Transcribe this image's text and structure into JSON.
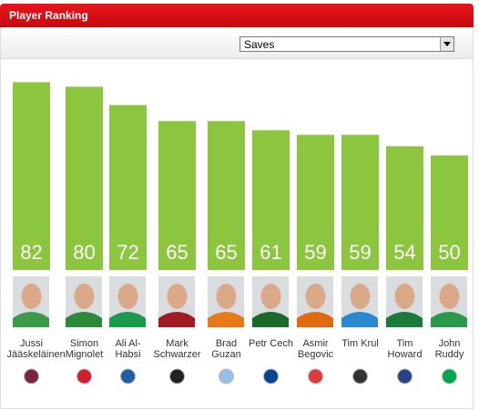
{
  "chart_data": {
    "type": "bar",
    "title": "Player Ranking",
    "selector": "Saves",
    "categories": [
      "Jussi Jääskeläinen",
      "Simon Mignolet",
      "Ali Al-Habsi",
      "Mark Schwarzer",
      "Brad Guzan",
      "Petr Cech",
      "Asmir Begovic",
      "Tim Krul",
      "Tim Howard",
      "John Ruddy"
    ],
    "values": [
      82,
      80,
      72,
      65,
      65,
      61,
      59,
      59,
      54,
      50
    ],
    "color": "#8cc63f"
  }
}
